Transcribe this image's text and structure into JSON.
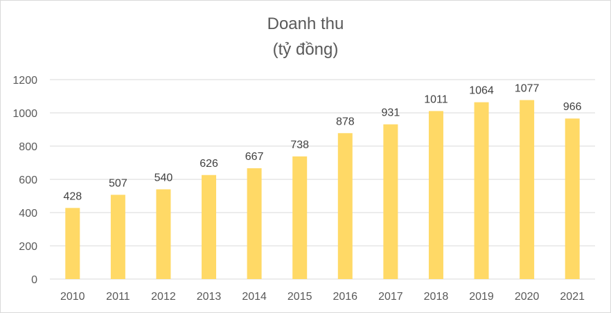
{
  "chart_data": {
    "type": "bar",
    "title": "Doanh thu",
    "subtitle": "(tỷ đồng)",
    "categories": [
      "2010",
      "2011",
      "2012",
      "2013",
      "2014",
      "2015",
      "2016",
      "2017",
      "2018",
      "2019",
      "2020",
      "2021"
    ],
    "values": [
      428,
      507,
      540,
      626,
      667,
      738,
      878,
      931,
      1011,
      1064,
      1077,
      966
    ],
    "ylim": [
      0,
      1200
    ],
    "yticks": [
      0,
      200,
      400,
      600,
      800,
      1000,
      1200
    ],
    "grid": true,
    "legend": "none",
    "bar_color": "#FFD966",
    "grid_color": "#d9d9d9"
  }
}
